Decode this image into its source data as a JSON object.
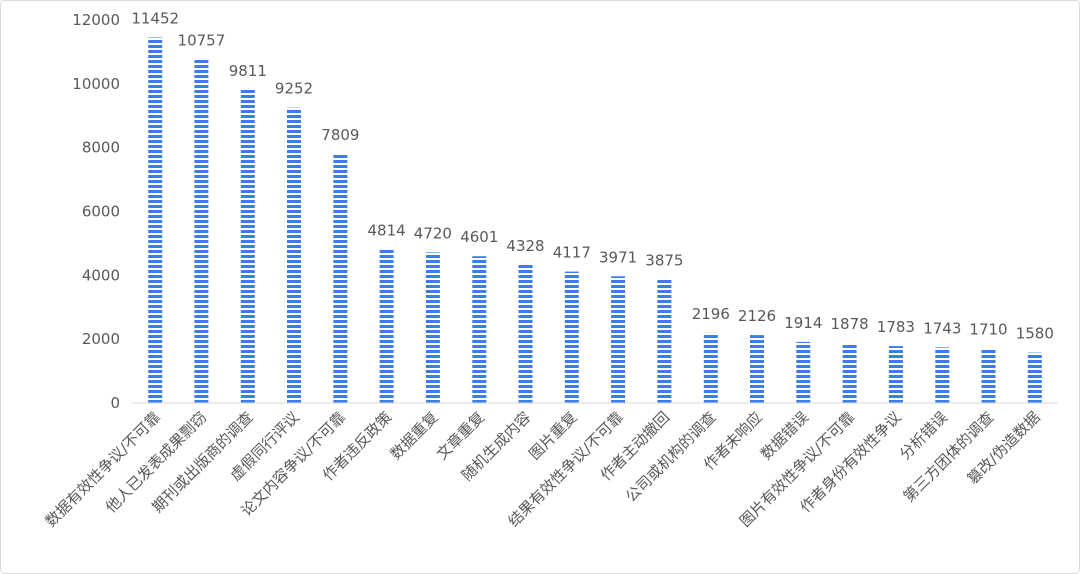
{
  "chart_data": {
    "type": "bar",
    "categories": [
      "数据有效性争议/不可靠",
      "他人已发表成果剽窃",
      "期刊或出版商的调查",
      "虚假同行评议",
      "论文内容争议/不可靠",
      "作者违反政策",
      "数据重复",
      "文章重复",
      "随机生成内容",
      "图片重复",
      "结果有效性争议/不可靠",
      "作者主动撤回",
      "公司或机构的调查",
      "作者未响应",
      "数据错误",
      "图片有效性争议/不可靠",
      "作者身份有效性争议",
      "分析错误",
      "第三方团体的调查",
      "篡改/伪造数据"
    ],
    "values": [
      11452,
      10757,
      9811,
      9252,
      7809,
      4814,
      4720,
      4601,
      4328,
      4117,
      3971,
      3875,
      2196,
      2126,
      1914,
      1878,
      1783,
      1743,
      1710,
      1580
    ],
    "ylim": [
      0,
      12000
    ],
    "yticks": [
      0,
      2000,
      4000,
      6000,
      8000,
      10000,
      12000
    ],
    "grid": false,
    "legend": "none",
    "data_labels": true,
    "bar_pattern": "horizontal-stripes",
    "colors": {
      "bar": "#3D7CEB",
      "stripe": "#ffffff",
      "text": "#595959",
      "axis": "#d9d9d9",
      "border": "#d9d9d9"
    }
  }
}
